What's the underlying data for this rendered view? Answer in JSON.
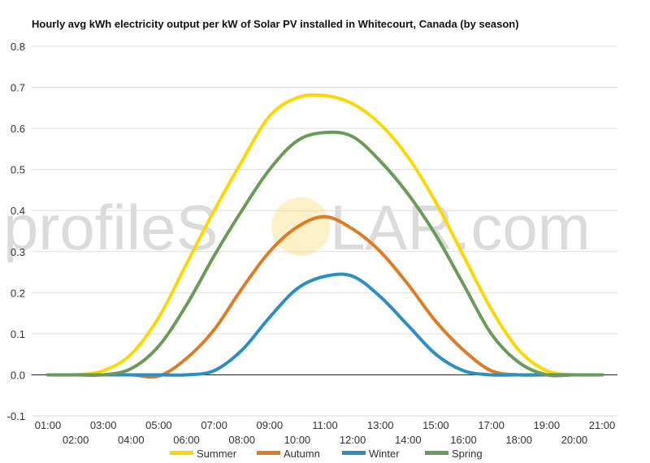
{
  "watermark": {
    "left": "profileS",
    "right": "LAR.com",
    "sun_color": "#f9e6a0"
  },
  "chart_data": {
    "type": "line",
    "title": "Hourly avg kWh electricity output per kW of Solar PV installed in Whitecourt, Canada (by season)",
    "xlabel": "",
    "ylabel": "",
    "x": [
      "01:00",
      "02:00",
      "03:00",
      "04:00",
      "05:00",
      "06:00",
      "07:00",
      "08:00",
      "09:00",
      "10:00",
      "11:00",
      "12:00",
      "13:00",
      "14:00",
      "15:00",
      "16:00",
      "17:00",
      "18:00",
      "19:00",
      "20:00",
      "21:00"
    ],
    "ylim": [
      -0.1,
      0.8
    ],
    "yticks": [
      "-0.1",
      "0.0",
      "0.1",
      "0.2",
      "0.3",
      "0.4",
      "0.5",
      "0.6",
      "0.7",
      "0.8"
    ],
    "grid": true,
    "legend_position": "bottom",
    "series": [
      {
        "name": "Summer",
        "color": "#ffd700",
        "values": [
          0,
          0,
          0.01,
          0.05,
          0.14,
          0.27,
          0.4,
          0.52,
          0.63,
          0.675,
          0.68,
          0.66,
          0.61,
          0.53,
          0.42,
          0.29,
          0.16,
          0.06,
          0.01,
          0,
          0
        ]
      },
      {
        "name": "Autumn",
        "color": "#e07b24",
        "values": [
          0,
          0,
          0,
          0,
          -0.003,
          0.04,
          0.11,
          0.21,
          0.3,
          0.36,
          0.385,
          0.355,
          0.3,
          0.22,
          0.13,
          0.06,
          0.01,
          0,
          0,
          0,
          0
        ]
      },
      {
        "name": "Winter",
        "color": "#2a8fc4",
        "values": [
          0,
          0,
          0,
          0,
          0,
          0,
          0.01,
          0.06,
          0.14,
          0.21,
          0.24,
          0.24,
          0.19,
          0.12,
          0.05,
          0.01,
          0,
          0,
          0,
          0,
          0
        ]
      },
      {
        "name": "Spring",
        "color": "#6a9a58",
        "values": [
          0,
          0,
          0,
          0.015,
          0.07,
          0.17,
          0.29,
          0.4,
          0.5,
          0.57,
          0.59,
          0.58,
          0.52,
          0.44,
          0.34,
          0.22,
          0.1,
          0.03,
          0,
          0,
          0
        ]
      }
    ]
  }
}
